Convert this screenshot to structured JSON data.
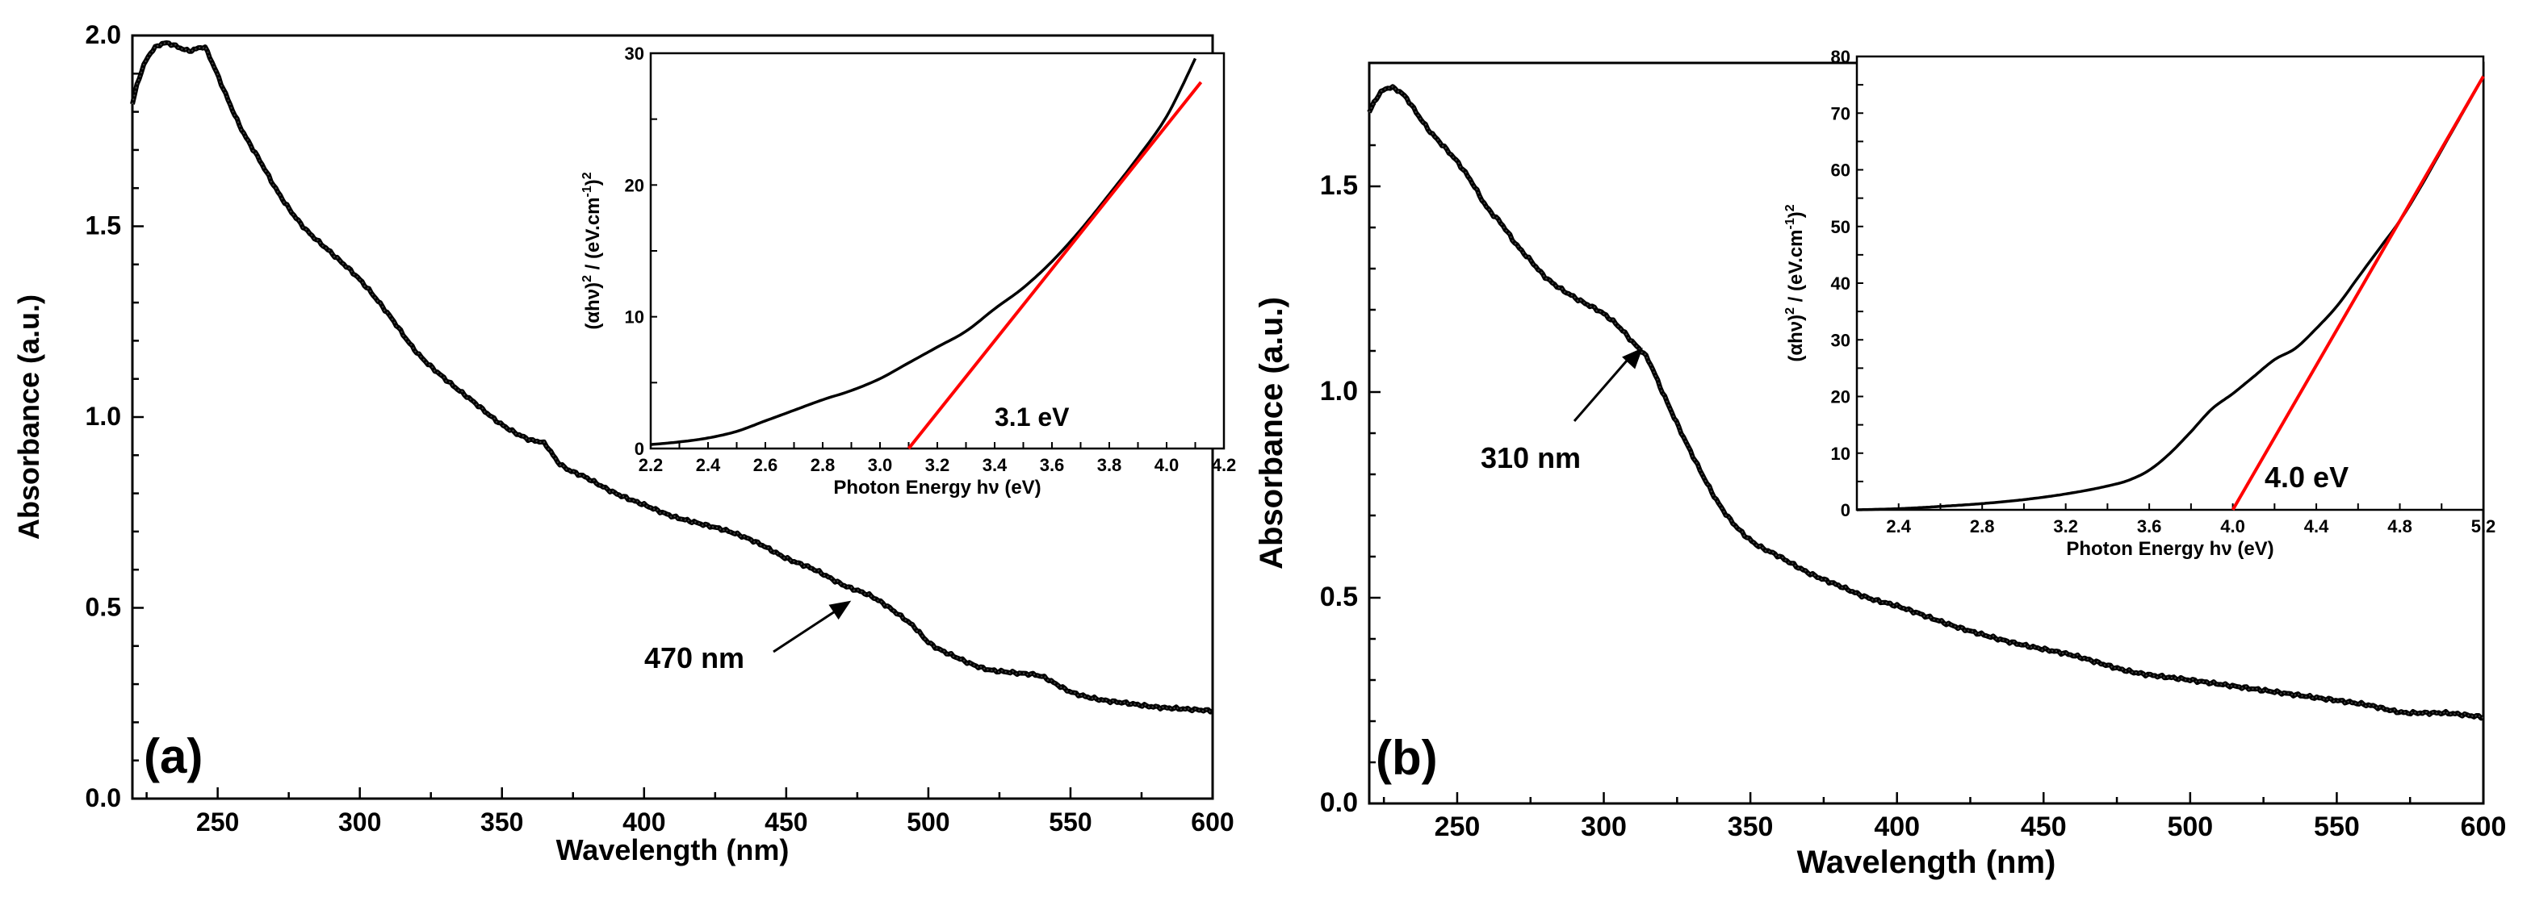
{
  "chart_data": [
    {
      "type": "line",
      "panel_label": "(a)",
      "xlabel": "Wavelength (nm)",
      "ylabel": "Absorbance (a.u.)",
      "xlim": [
        220,
        600
      ],
      "ylim": [
        0,
        2.0
      ],
      "xticks": [
        "250",
        "300",
        "350",
        "400",
        "450",
        "500",
        "550",
        "600"
      ],
      "yticks": [
        "0.0",
        "0.5",
        "1.0",
        "1.5",
        "2.0"
      ],
      "series": [
        {
          "name": "absorbance",
          "x": [
            220,
            222,
            226,
            232,
            236,
            240,
            245,
            248,
            252,
            258,
            265,
            272,
            280,
            290,
            300,
            310,
            320,
            330,
            340,
            350,
            360,
            365,
            370,
            380,
            390,
            400,
            410,
            420,
            430,
            440,
            450,
            460,
            470,
            480,
            490,
            495,
            500,
            510,
            520,
            530,
            540,
            545,
            550,
            560,
            570,
            580,
            590,
            600
          ],
          "y": [
            1.82,
            1.88,
            1.95,
            1.98,
            1.97,
            1.96,
            1.97,
            1.93,
            1.86,
            1.76,
            1.67,
            1.58,
            1.5,
            1.43,
            1.36,
            1.27,
            1.17,
            1.1,
            1.04,
            0.98,
            0.94,
            0.93,
            0.88,
            0.84,
            0.8,
            0.77,
            0.74,
            0.72,
            0.7,
            0.67,
            0.63,
            0.6,
            0.56,
            0.53,
            0.48,
            0.45,
            0.41,
            0.37,
            0.34,
            0.33,
            0.32,
            0.3,
            0.28,
            0.26,
            0.25,
            0.24,
            0.235,
            0.23
          ]
        }
      ],
      "annotation": {
        "text": "470 nm",
        "x": 470,
        "y": 0.54
      },
      "inset": {
        "xlabel": "Photon Energy hν  (eV)",
        "ylabel_main": "(αhν)",
        "ylabel_mid": " / (eV.cm",
        "ylabel_sup1": "2",
        "ylabel_sup2": "-1",
        "ylabel_sup3": "2",
        "ylabel_close": ")",
        "xlim": [
          2.2,
          4.2
        ],
        "ylim": [
          0,
          30
        ],
        "xticks": [
          "2.2",
          "2.4",
          "2.6",
          "2.8",
          "3.0",
          "3.2",
          "3.4",
          "3.6",
          "3.8",
          "4.0",
          "4.2"
        ],
        "yticks": [
          "0",
          "10",
          "20",
          "30"
        ],
        "data_x": [
          2.2,
          2.3,
          2.4,
          2.5,
          2.6,
          2.7,
          2.8,
          2.9,
          3.0,
          3.1,
          3.2,
          3.3,
          3.4,
          3.5,
          3.6,
          3.7,
          3.8,
          3.9,
          4.0,
          4.05,
          4.1
        ],
        "data_y": [
          0.3,
          0.5,
          0.8,
          1.3,
          2.1,
          2.9,
          3.7,
          4.4,
          5.3,
          6.5,
          7.7,
          8.9,
          10.6,
          12.2,
          14.2,
          16.6,
          19.3,
          22.1,
          25.2,
          27.3,
          29.6
        ],
        "fit_x": [
          3.1,
          4.12
        ],
        "fit_y": [
          0,
          27.8
        ],
        "fit_color": "#ff0000",
        "band_gap_label": "3.1 eV"
      }
    },
    {
      "type": "line",
      "panel_label": "(b)",
      "xlabel": "Wavelength (nm)",
      "ylabel": "Absorbance (a.u.)",
      "xlim": [
        220,
        600
      ],
      "ylim": [
        0,
        1.8
      ],
      "xticks": [
        "250",
        "300",
        "350",
        "400",
        "450",
        "500",
        "550",
        "600"
      ],
      "yticks": [
        "0.0",
        "0.5",
        "1.0",
        "1.5"
      ],
      "series": [
        {
          "name": "absorbance",
          "x": [
            220,
            223,
            227,
            232,
            236,
            240,
            245,
            250,
            255,
            260,
            265,
            270,
            275,
            280,
            290,
            300,
            305,
            310,
            315,
            320,
            330,
            340,
            350,
            360,
            370,
            380,
            390,
            400,
            420,
            440,
            460,
            480,
            500,
            520,
            540,
            560,
            575,
            585,
            600
          ],
          "y": [
            1.68,
            1.72,
            1.74,
            1.72,
            1.68,
            1.64,
            1.6,
            1.56,
            1.51,
            1.45,
            1.41,
            1.36,
            1.32,
            1.28,
            1.23,
            1.19,
            1.16,
            1.12,
            1.08,
            1.0,
            0.85,
            0.72,
            0.64,
            0.6,
            0.56,
            0.53,
            0.5,
            0.48,
            0.43,
            0.39,
            0.36,
            0.32,
            0.3,
            0.28,
            0.26,
            0.24,
            0.22,
            0.22,
            0.21
          ]
        }
      ],
      "annotation": {
        "text": "310 nm",
        "x": 310,
        "y": 1.1
      },
      "inset": {
        "xlabel": "Photon Energy hν  (eV)",
        "ylabel_main": "(αhν)",
        "ylabel_mid": " / (eV.cm",
        "ylabel_sup1": "2",
        "ylabel_sup2": "-1",
        "ylabel_sup3": "2",
        "ylabel_close": ")",
        "xlim": [
          2.2,
          5.2
        ],
        "ylim": [
          0,
          80
        ],
        "xticks": [
          "2.4",
          "2.8",
          "3.2",
          "3.6",
          "4.0",
          "4.4",
          "4.8",
          "5.2"
        ],
        "yticks": [
          "0",
          "10",
          "20",
          "30",
          "40",
          "50",
          "60",
          "70",
          "80"
        ],
        "data_x": [
          2.2,
          2.4,
          2.6,
          2.8,
          3.0,
          3.2,
          3.4,
          3.5,
          3.6,
          3.7,
          3.8,
          3.9,
          4.0,
          4.1,
          4.2,
          4.3,
          4.4,
          4.5,
          4.6,
          4.7,
          4.8,
          4.9,
          5.0,
          5.1,
          5.2
        ],
        "data_y": [
          0,
          0.2,
          0.6,
          1.1,
          1.8,
          2.8,
          4.2,
          5.2,
          7.0,
          10.0,
          13.8,
          17.8,
          20.5,
          23.5,
          26.5,
          28.5,
          32.0,
          36.0,
          41.0,
          46.0,
          51.0,
          57.0,
          63.5,
          70.0,
          76.5
        ],
        "fit_x": [
          4.0,
          5.2
        ],
        "fit_y": [
          0,
          76.5
        ],
        "fit_color": "#ff0000",
        "band_gap_label": "4.0 eV"
      }
    }
  ]
}
